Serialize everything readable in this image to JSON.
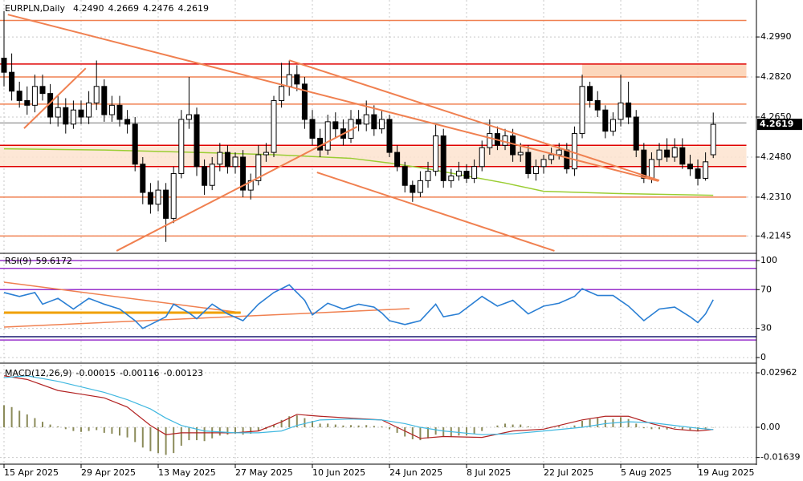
{
  "chart_data": {
    "type": "candlestick",
    "symbol": "EURPLN,Daily",
    "last_labels": {
      "open": "4.2490",
      "high": "4.2669",
      "low": "4.2476",
      "close": "4.2619"
    },
    "open": [
      4.29,
      4.284,
      4.276,
      4.272,
      4.27,
      4.278,
      4.275,
      4.265,
      4.269,
      4.262,
      4.268,
      4.265,
      4.271,
      4.278,
      4.266,
      4.27,
      4.264,
      4.262,
      4.245,
      4.233,
      4.228,
      4.234,
      4.222,
      4.241,
      4.264,
      4.266,
      4.244,
      4.236,
      4.245,
      4.25,
      4.244,
      4.248,
      4.234,
      4.238,
      4.249,
      4.25,
      4.272,
      4.278,
      4.283,
      4.279,
      4.264,
      4.256,
      4.251,
      4.263,
      4.26,
      4.256,
      4.264,
      4.262,
      4.266,
      4.26,
      4.264,
      4.25,
      4.244,
      4.236,
      4.233,
      4.238,
      4.242,
      4.257,
      4.238,
      4.24,
      4.242,
      4.239,
      4.244,
      4.252,
      4.258,
      4.253,
      4.257,
      4.249,
      4.25,
      4.241,
      4.244,
      4.247,
      4.249,
      4.251,
      4.243,
      4.258,
      4.278,
      4.272,
      4.268,
      4.259,
      4.264,
      4.271,
      4.265,
      4.251,
      4.239,
      4.247,
      4.251,
      4.248,
      4.252,
      4.245,
      4.243,
      4.239,
      4.249
    ],
    "high": [
      4.31,
      4.292,
      4.28,
      4.278,
      4.283,
      4.283,
      4.279,
      4.274,
      4.273,
      4.272,
      4.272,
      4.276,
      4.289,
      4.281,
      4.274,
      4.274,
      4.268,
      4.265,
      4.248,
      4.237,
      4.238,
      4.237,
      4.244,
      4.268,
      4.282,
      4.269,
      4.247,
      4.248,
      4.254,
      4.253,
      4.25,
      4.251,
      4.241,
      4.253,
      4.254,
      4.274,
      4.288,
      4.289,
      4.287,
      4.282,
      4.268,
      4.26,
      4.266,
      4.267,
      4.264,
      4.268,
      4.268,
      4.272,
      4.27,
      4.268,
      4.266,
      4.253,
      4.246,
      4.238,
      4.242,
      4.246,
      4.262,
      4.26,
      4.243,
      4.246,
      4.245,
      4.247,
      4.255,
      4.264,
      4.261,
      4.26,
      4.26,
      4.254,
      4.253,
      4.247,
      4.249,
      4.252,
      4.254,
      4.254,
      4.261,
      4.283,
      4.28,
      4.276,
      4.27,
      4.267,
      4.283,
      4.28,
      4.268,
      4.254,
      4.25,
      4.254,
      4.256,
      4.256,
      4.256,
      4.249,
      4.247,
      4.25,
      4.2669
    ],
    "low": [
      4.278,
      4.272,
      4.269,
      4.266,
      4.267,
      4.272,
      4.262,
      4.261,
      4.258,
      4.26,
      4.262,
      4.262,
      4.268,
      4.263,
      4.263,
      4.261,
      4.258,
      4.242,
      4.228,
      4.224,
      4.225,
      4.212,
      4.22,
      4.239,
      4.26,
      4.24,
      4.232,
      4.234,
      4.242,
      4.241,
      4.241,
      4.231,
      4.23,
      4.236,
      4.246,
      4.248,
      4.269,
      4.274,
      4.276,
      4.26,
      4.253,
      4.248,
      4.249,
      4.256,
      4.253,
      4.254,
      4.259,
      4.259,
      4.257,
      4.258,
      4.248,
      4.242,
      4.233,
      4.229,
      4.231,
      4.235,
      4.24,
      4.235,
      4.235,
      4.238,
      4.237,
      4.237,
      4.242,
      4.249,
      4.251,
      4.251,
      4.246,
      4.246,
      4.239,
      4.238,
      4.241,
      4.245,
      4.247,
      4.241,
      4.24,
      4.256,
      4.269,
      4.265,
      4.256,
      4.257,
      4.261,
      4.262,
      4.248,
      4.237,
      4.237,
      4.244,
      4.246,
      4.246,
      4.243,
      4.24,
      4.236,
      4.238,
      4.2476
    ],
    "close": [
      4.284,
      4.276,
      4.272,
      4.27,
      4.278,
      4.275,
      4.265,
      4.269,
      4.262,
      4.268,
      4.265,
      4.271,
      4.278,
      4.266,
      4.27,
      4.264,
      4.262,
      4.245,
      4.233,
      4.228,
      4.234,
      4.222,
      4.241,
      4.264,
      4.266,
      4.244,
      4.236,
      4.245,
      4.25,
      4.244,
      4.248,
      4.234,
      4.238,
      4.249,
      4.25,
      4.272,
      4.278,
      4.283,
      4.279,
      4.264,
      4.256,
      4.251,
      4.263,
      4.26,
      4.256,
      4.264,
      4.262,
      4.266,
      4.26,
      4.264,
      4.25,
      4.244,
      4.236,
      4.233,
      4.238,
      4.242,
      4.257,
      4.238,
      4.24,
      4.242,
      4.239,
      4.244,
      4.252,
      4.258,
      4.253,
      4.257,
      4.249,
      4.25,
      4.241,
      4.244,
      4.247,
      4.249,
      4.251,
      4.243,
      4.258,
      4.278,
      4.272,
      4.268,
      4.259,
      4.264,
      4.271,
      4.265,
      4.251,
      4.239,
      4.247,
      4.251,
      4.248,
      4.252,
      4.245,
      4.243,
      4.239,
      4.246,
      4.2619
    ],
    "ma": {
      "color": "#9acd32",
      "x": [
        0,
        13,
        25,
        35,
        45,
        50,
        55,
        60,
        65,
        70,
        80,
        92
      ],
      "values": [
        4.2515,
        4.251,
        4.25,
        4.249,
        4.2475,
        4.2455,
        4.243,
        4.24,
        4.237,
        4.2335,
        4.2325,
        4.2318
      ]
    },
    "xlim": [
      -0.52,
      97.6
    ],
    "ylim": [
      4.2075,
      4.314
    ],
    "yticks": [
      {
        "value": 4.299,
        "label": "4.2990"
      },
      {
        "value": 4.282,
        "label": "4.2820"
      },
      {
        "value": 4.265,
        "label": "4.2650"
      },
      {
        "value": 4.248,
        "label": "4.2480"
      },
      {
        "value": 4.231,
        "label": "4.2310"
      },
      {
        "value": 4.2145,
        "label": "4.2145"
      }
    ],
    "xticks": [
      {
        "value": 0,
        "label": "15 Apr 2025"
      },
      {
        "value": 10,
        "label": "29 Apr 2025"
      },
      {
        "value": 20,
        "label": "13 May 2025"
      },
      {
        "value": 30,
        "label": "27 May 2025"
      },
      {
        "value": 40,
        "label": "10 Jun 2025"
      },
      {
        "value": 50,
        "label": "24 Jun 2025"
      },
      {
        "value": 60,
        "label": "8 Jul 2025"
      },
      {
        "value": 70,
        "label": "22 Jul 2025"
      },
      {
        "value": 80,
        "label": "5 Aug 2025"
      },
      {
        "value": 90,
        "label": "19 Aug 2025"
      }
    ],
    "grid": true,
    "levels": [
      {
        "price": 4.306,
        "color": "#f08050"
      },
      {
        "price": 4.2875,
        "color": "#e00000"
      },
      {
        "price": 4.282,
        "color": "#f08050"
      },
      {
        "price": 4.2705,
        "color": "#f08050"
      },
      {
        "price": 4.2625,
        "color": "#a0a0a0"
      },
      {
        "price": 4.253,
        "color": "#e00000"
      },
      {
        "price": 4.244,
        "color": "#e00000"
      },
      {
        "price": 4.231,
        "color": "#f08050"
      },
      {
        "price": 4.2145,
        "color": "#f08050"
      }
    ],
    "zones": [
      {
        "x": [
          75,
          96.3
        ],
        "y": [
          4.282,
          4.2875
        ],
        "color": "#fbd0b0"
      },
      {
        "x": [
          -0.52,
          96.3
        ],
        "y": [
          4.244,
          4.253
        ],
        "color": "#fde3cf"
      }
    ],
    "trendlines": [
      {
        "x": [
          0.5,
          84.9
        ],
        "y": [
          4.3085,
          4.2378
        ],
        "color": "#f08050"
      },
      {
        "x": [
          14.6,
          45.8
        ],
        "y": [
          4.2082,
          4.2609
        ],
        "color": "#f08050"
      },
      {
        "x": [
          2.6,
          10.6
        ],
        "y": [
          4.2602,
          4.2857
        ],
        "color": "#f08050"
      },
      {
        "x": [
          37,
          85
        ],
        "y": [
          4.2891,
          4.2381
        ],
        "color": "#f08050"
      },
      {
        "x": [
          40.6,
          71.4
        ],
        "y": [
          4.2415,
          4.2082
        ],
        "color": "#f08050"
      }
    ],
    "rsi": {
      "name": "RSI(9)",
      "color": "#2a7fd4",
      "x": [
        0,
        2,
        4,
        5,
        7,
        9,
        11,
        13,
        15,
        17,
        18,
        19,
        21,
        22,
        24,
        25,
        27,
        29,
        31,
        33,
        35,
        37,
        39,
        40,
        42,
        44,
        46,
        48,
        49,
        50,
        52,
        54,
        56,
        57,
        59,
        62,
        64,
        66,
        68,
        70,
        72,
        74,
        75,
        77,
        79,
        81,
        83,
        85,
        87,
        89,
        90,
        91,
        92
      ],
      "values": [
        67,
        63,
        67,
        55,
        61,
        50,
        61,
        55,
        50,
        38,
        30,
        34,
        42,
        55,
        46,
        40,
        55,
        45,
        38,
        55,
        67,
        75,
        59,
        44,
        56,
        50,
        55,
        52,
        46,
        38,
        34,
        38,
        55,
        42,
        45,
        63,
        53,
        59,
        45,
        53,
        56,
        63,
        71,
        64,
        64,
        53,
        38,
        50,
        52,
        42,
        36,
        45,
        59.6172
      ],
      "ylim": [
        -5,
        105.8
      ],
      "yticks": [
        100,
        70,
        30,
        0
      ],
      "levels": [
        {
          "value": 100,
          "color": "#9932cc"
        },
        {
          "value": 92,
          "color": "#9932cc"
        },
        {
          "value": 70,
          "color": "#9932cc"
        },
        {
          "value": 21.5,
          "color": "#191970"
        },
        {
          "value": 18,
          "color": "#9932cc"
        }
      ],
      "trendlines": [
        {
          "x": [
            0,
            30.7
          ],
          "y": [
            77.7,
            46.3
          ],
          "color": "#f08050",
          "width": 1.5
        },
        {
          "x": [
            0,
            30.7
          ],
          "y": [
            46.3,
            46.3
          ],
          "color": "#f0a000",
          "width": 3
        },
        {
          "x": [
            0,
            52.6
          ],
          "y": [
            31.4,
            50.4
          ],
          "color": "#f08050",
          "width": 1.5
        }
      ]
    },
    "macd": {
      "name": "MACD(12,26,9)",
      "hist_color": "#8b8b5a",
      "hist": [
        0.012,
        0.011,
        0.009,
        0.007,
        0.005,
        0.003,
        0.0015,
        0.0005,
        -0.001,
        -0.002,
        -0.0025,
        -0.002,
        -0.0015,
        -0.003,
        -0.0035,
        -0.0045,
        -0.0055,
        -0.008,
        -0.011,
        -0.013,
        -0.014,
        -0.015,
        -0.014,
        -0.01,
        -0.007,
        -0.007,
        -0.0075,
        -0.006,
        -0.0045,
        -0.004,
        -0.0035,
        -0.004,
        -0.0035,
        -0.002,
        -0.001,
        0.0015,
        0.004,
        0.006,
        0.0065,
        0.005,
        0.0035,
        0.002,
        0.002,
        0.0015,
        0.001,
        0.0012,
        0.001,
        0.0012,
        0.0008,
        0.0005,
        -0.001,
        -0.003,
        -0.005,
        -0.0065,
        -0.007,
        -0.006,
        -0.004,
        -0.005,
        -0.005,
        -0.0045,
        -0.0045,
        -0.0035,
        -0.002,
        0.0,
        0.001,
        0.002,
        0.0015,
        0.0015,
        0.0005,
        0.0,
        0.0,
        0.0003,
        0.0006,
        0.0,
        0.001,
        0.0035,
        0.0045,
        0.005,
        0.004,
        0.0045,
        0.0055,
        0.0045,
        0.002,
        -0.0005,
        -0.001,
        -0.001,
        -0.0012,
        -0.0005,
        -0.0012,
        -0.0015,
        -0.002,
        -0.0012,
        -0.00015
      ],
      "main": {
        "color": "#b22222",
        "x": [
          0,
          3,
          7,
          10,
          13,
          16,
          19,
          21,
          23,
          26,
          30,
          33,
          36,
          38,
          41,
          45,
          49,
          52,
          54,
          57,
          62,
          66,
          70,
          75,
          78,
          81,
          84,
          87,
          90,
          92
        ],
        "values": [
          0.028,
          0.026,
          0.02,
          0.018,
          0.016,
          0.011,
          0.001,
          -0.004,
          -0.003,
          -0.003,
          -0.003,
          -0.002,
          0.003,
          0.007,
          0.006,
          0.005,
          0.004,
          -0.002,
          -0.006,
          -0.005,
          -0.0055,
          -0.002,
          -0.001,
          0.004,
          0.006,
          0.006,
          0.002,
          -0.001,
          -0.002,
          -0.00116
        ]
      },
      "signal": {
        "color": "#40b8e0",
        "x": [
          0,
          3,
          7,
          10,
          13,
          16,
          19,
          21,
          23,
          26,
          30,
          33,
          36,
          38,
          41,
          45,
          49,
          52,
          54,
          57,
          62,
          66,
          70,
          75,
          78,
          81,
          84,
          87,
          90,
          92
        ],
        "values": [
          0.027,
          0.028,
          0.025,
          0.022,
          0.019,
          0.015,
          0.01,
          0.005,
          0.001,
          -0.002,
          -0.003,
          -0.003,
          -0.002,
          0.001,
          0.004,
          0.0045,
          0.004,
          0.002,
          0.0,
          -0.002,
          -0.004,
          -0.0035,
          -0.002,
          0.0,
          0.002,
          0.003,
          0.0025,
          0.001,
          -0.0005,
          -0.00123
        ]
      },
      "ylim": [
        -0.0196,
        0.034
      ],
      "yticks": [
        0.02962,
        {
          "value": 0,
          "label": "0.00"
        },
        -0.01639
      ]
    }
  }
}
